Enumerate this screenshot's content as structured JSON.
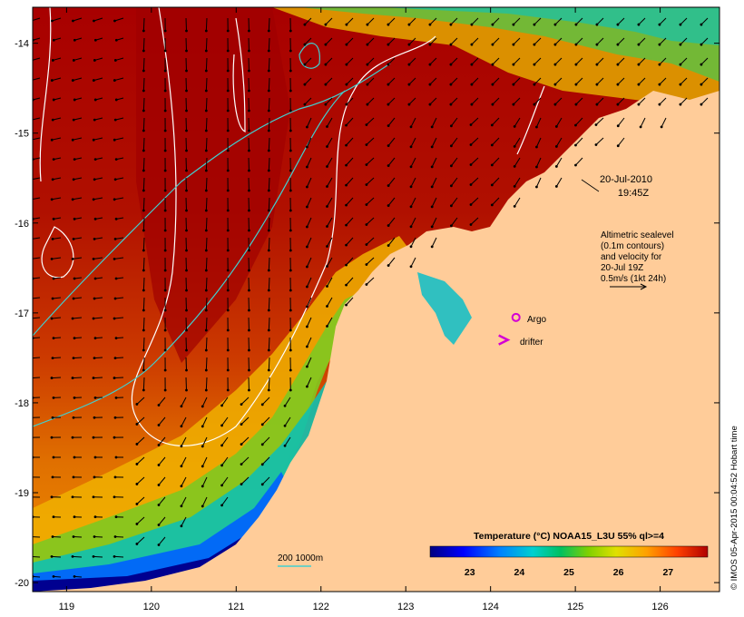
{
  "map": {
    "timestamp_date": "20-Jul-2010",
    "timestamp_time": "19:45Z",
    "altimetry_note": [
      "Altimetric sealevel",
      "(0.1m contours)",
      "and velocity for",
      "20-Jul 19Z",
      "0.5m/s (1kt 24h)"
    ],
    "legend": {
      "argo_label": "Argo",
      "drifter_label": "drifter",
      "argo_color": "#d400d4",
      "drifter_color": "#d400d4"
    },
    "depth_legend": "200  1000m",
    "colorbar": {
      "title": "Temperature (°C) NOAA15_L3U 55% ql>=4",
      "ticks": [
        "23",
        "24",
        "25",
        "26",
        "27"
      ],
      "colors": [
        "#000080",
        "#0000ff",
        "#0080ff",
        "#00d0d0",
        "#00c060",
        "#80d000",
        "#e0e000",
        "#ffa000",
        "#ff4000",
        "#b00000"
      ]
    },
    "credit": "© IMOS 05-Apr-2015 00:04:52 Hobart time",
    "land_color": "#ffcc99",
    "chart_data": {
      "type": "heatmap",
      "title": "",
      "xlabel": "",
      "ylabel": "",
      "x_ticks": [
        "119",
        "120",
        "121",
        "122",
        "123",
        "124",
        "125",
        "126"
      ],
      "y_ticks": [
        "-14",
        "-15",
        "-16",
        "-17",
        "-18",
        "-19",
        "-20"
      ],
      "xlim": [
        118.6,
        126.7
      ],
      "ylim": [
        -20.1,
        -13.6
      ],
      "value_range": [
        22.2,
        27.8
      ],
      "argo_position": [
        124.3,
        -17.05
      ],
      "drifter_position": [
        124.15,
        -17.3
      ]
    }
  }
}
